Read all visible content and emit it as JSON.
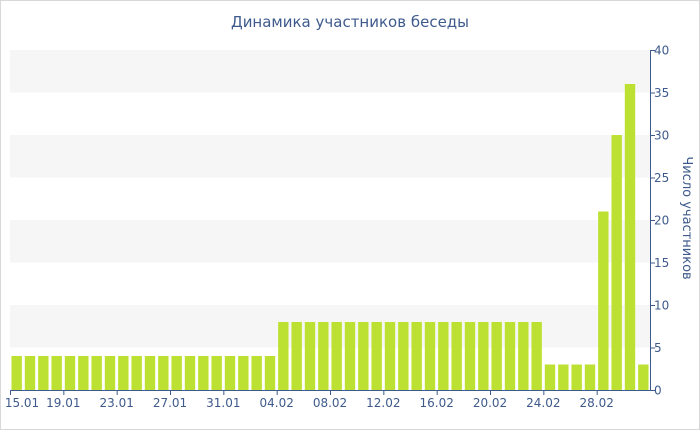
{
  "chart_data": {
    "type": "bar",
    "title": "Динамика участников беседы",
    "ylabel": "Число участников",
    "ylim": [
      0,
      40
    ],
    "yticks": [
      "0",
      "5",
      "10",
      "15",
      "20",
      "25",
      "30",
      "35",
      "40"
    ],
    "x_tick_labels": [
      "15.01",
      "19.01",
      "23.01",
      "27.01",
      "31.01",
      "04.02",
      "08.02",
      "12.02",
      "16.02",
      "20.02",
      "24.02",
      "28.02"
    ],
    "x_tick_every": 4,
    "values": [
      4,
      4,
      4,
      4,
      4,
      4,
      4,
      4,
      4,
      4,
      4,
      4,
      4,
      4,
      4,
      4,
      4,
      4,
      4,
      4,
      8,
      8,
      8,
      8,
      8,
      8,
      8,
      8,
      8,
      8,
      8,
      8,
      8,
      8,
      8,
      8,
      8,
      8,
      8,
      8,
      3,
      3,
      3,
      3,
      21,
      30,
      36,
      3
    ],
    "colors": {
      "bar": "#bde132",
      "band": "#f6f6f6",
      "axis": "#3e5a8c"
    },
    "grid": "horizontal-bands",
    "y_axis_side": "right"
  }
}
